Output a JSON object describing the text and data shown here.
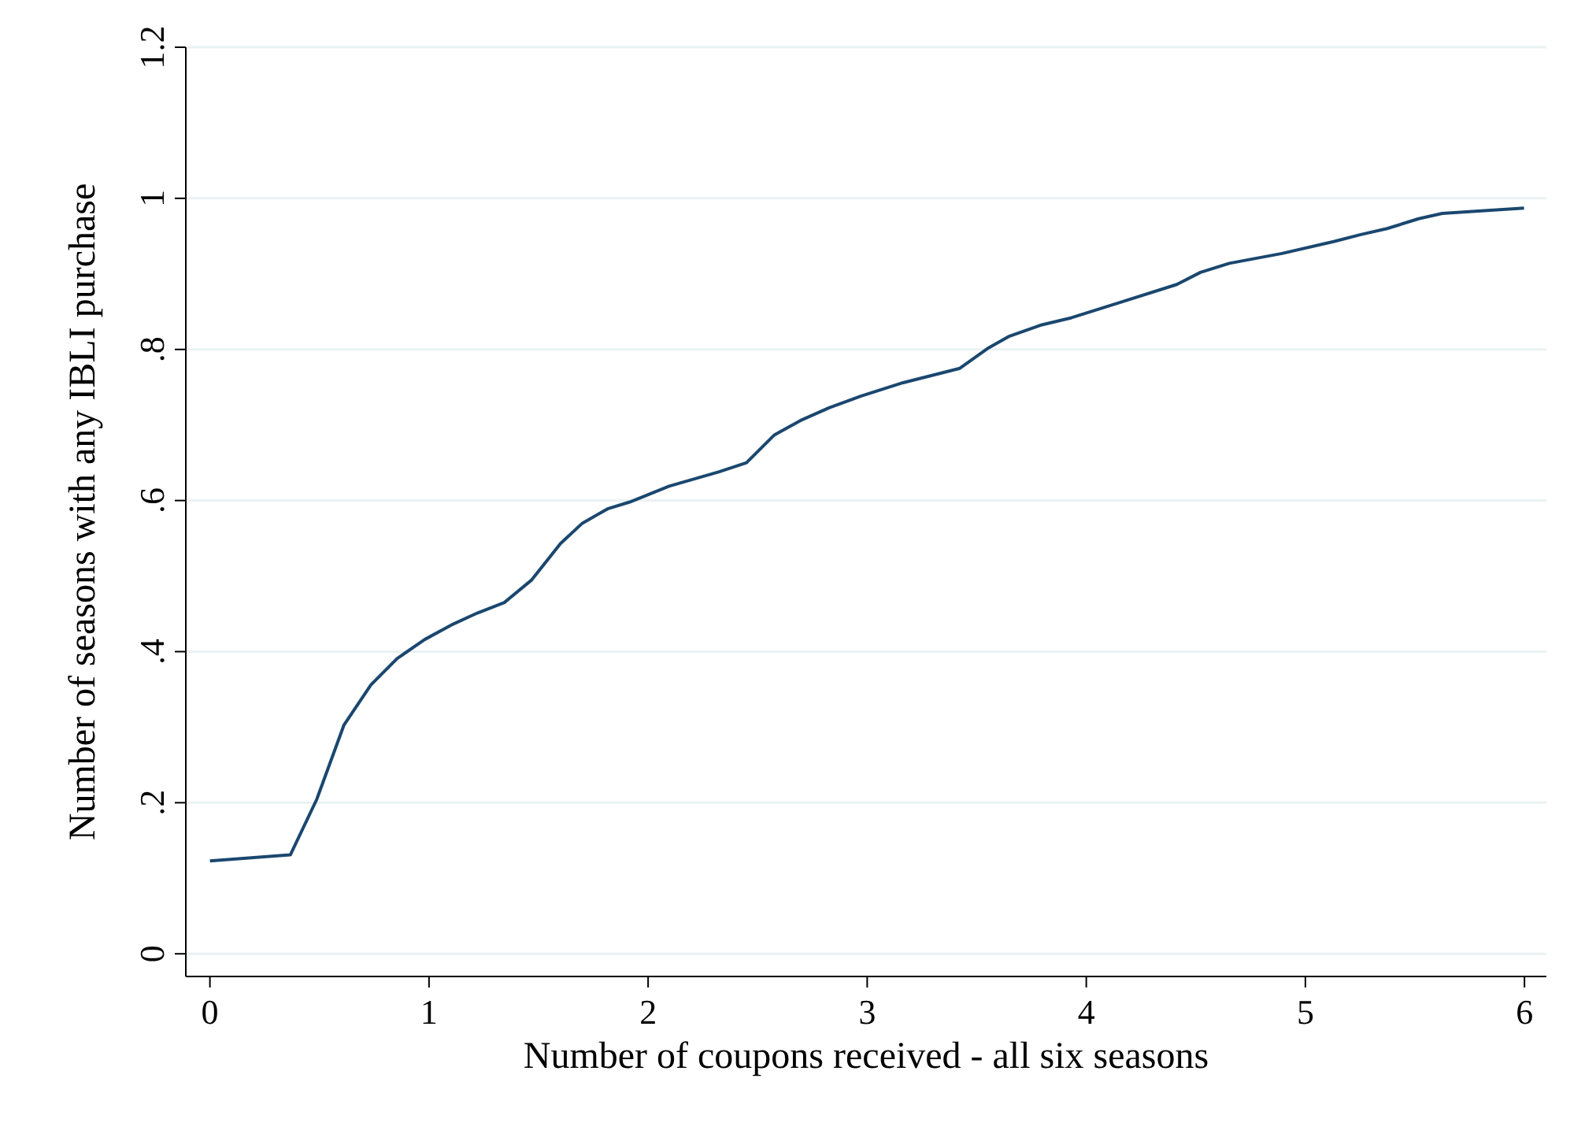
{
  "chart_data": {
    "type": "line",
    "xlabel": "Number of coupons received - all six seasons",
    "ylabel": "Number of seasons with any IBLI purchase",
    "x": [
      0,
      0.367,
      0.487,
      0.612,
      0.735,
      0.855,
      0.98,
      1.1,
      1.22,
      1.344,
      1.469,
      1.556,
      1.6,
      1.7,
      1.815,
      1.916,
      2.096,
      2.324,
      2.449,
      2.577,
      2.696,
      2.828,
      2.97,
      3.164,
      3.423,
      3.548,
      3.645,
      3.79,
      3.933,
      4.173,
      4.413,
      4.521,
      4.653,
      4.893,
      5.133,
      5.253,
      5.373,
      5.517,
      5.625,
      5.998
    ],
    "series": [
      {
        "color": "#1a476f",
        "values": [
          0.123,
          0.131,
          0.204,
          0.303,
          0.356,
          0.391,
          0.416,
          0.435,
          0.451,
          0.465,
          0.495,
          0.527,
          0.543,
          0.57,
          0.589,
          0.598,
          0.619,
          0.638,
          0.65,
          0.687,
          0.706,
          0.723,
          0.738,
          0.756,
          0.775,
          0.801,
          0.817,
          0.832,
          0.842,
          0.864,
          0.886,
          0.902,
          0.914,
          0.927,
          0.943,
          0.952,
          0.96,
          0.973,
          0.98,
          0.987
        ]
      }
    ],
    "xlim": [
      -0.11,
      6.1
    ],
    "xticks": [
      0,
      1,
      2,
      3,
      4,
      5,
      6
    ],
    "ylim": [
      -0.03,
      1.2
    ],
    "yticks": [
      0,
      {
        "value": 0.2,
        "label": ".2"
      },
      {
        "value": 0.4,
        "label": ".4"
      },
      {
        "value": 0.6,
        "label": ".6"
      },
      {
        "value": 0.8,
        "label": ".8"
      },
      1,
      {
        "value": 1.2,
        "label": "1.2"
      }
    ],
    "grid": "y",
    "marker": "none",
    "line_style": "solid"
  }
}
